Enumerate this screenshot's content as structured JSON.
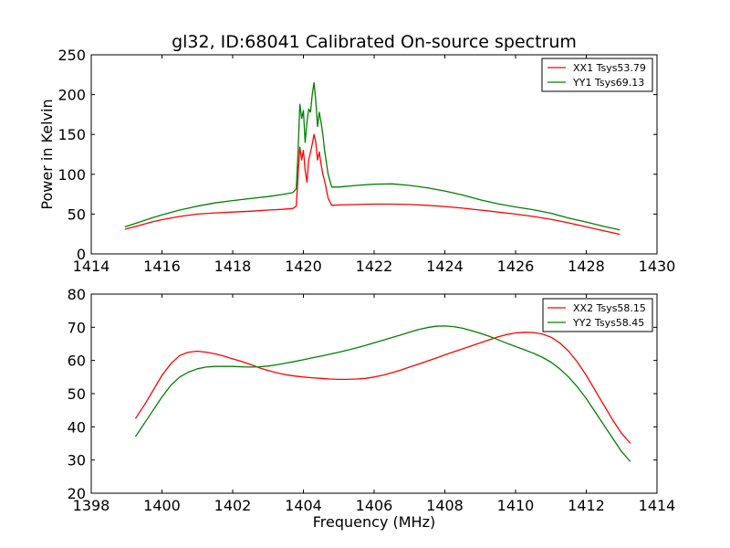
{
  "chart_data": [
    {
      "type": "line",
      "title": "gl32, ID:68041 Calibrated On-source spectrum",
      "xlabel": "",
      "ylabel": "Power in Kelvin",
      "xlim": [
        1414,
        1430
      ],
      "ylim": [
        0,
        250
      ],
      "xticks": [
        1414,
        1416,
        1418,
        1420,
        1422,
        1424,
        1426,
        1428,
        1430
      ],
      "yticks": [
        0,
        50,
        100,
        150,
        200,
        250
      ],
      "grid": false,
      "legend_position": "top-right",
      "series": [
        {
          "name": "XX1 Tsys53.79",
          "color": "#ff0000",
          "x": [
            1414.95,
            1415.3,
            1415.7,
            1416.0,
            1416.5,
            1417.0,
            1417.5,
            1418.0,
            1418.5,
            1419.0,
            1419.4,
            1419.7,
            1419.8,
            1419.85,
            1419.9,
            1419.95,
            1420.0,
            1420.05,
            1420.1,
            1420.15,
            1420.2,
            1420.25,
            1420.3,
            1420.35,
            1420.4,
            1420.45,
            1420.5,
            1420.55,
            1420.6,
            1420.7,
            1420.8,
            1421.0,
            1421.5,
            1422.0,
            1422.5,
            1423.0,
            1423.5,
            1424.0,
            1424.5,
            1425.0,
            1425.5,
            1426.0,
            1426.5,
            1427.0,
            1427.5,
            1428.0,
            1428.5,
            1428.95
          ],
          "y": [
            31,
            35,
            40,
            43,
            47,
            50,
            51.5,
            52.5,
            53.5,
            55,
            56,
            57,
            60,
            100,
            134,
            118,
            130,
            105,
            90,
            118,
            128,
            138,
            150,
            140,
            118,
            128,
            112,
            100,
            92,
            70,
            61,
            61.5,
            62,
            62.5,
            62.5,
            62,
            61,
            59.5,
            57.5,
            55,
            52.5,
            50,
            47,
            43.5,
            39,
            34,
            29,
            24.5
          ]
        },
        {
          "name": "YY1 Tsys69.13",
          "color": "#008000",
          "x": [
            1414.95,
            1415.3,
            1415.7,
            1416.0,
            1416.5,
            1417.0,
            1417.5,
            1418.0,
            1418.5,
            1419.0,
            1419.4,
            1419.7,
            1419.8,
            1419.85,
            1419.9,
            1419.95,
            1420.0,
            1420.05,
            1420.1,
            1420.15,
            1420.2,
            1420.25,
            1420.3,
            1420.35,
            1420.4,
            1420.45,
            1420.5,
            1420.55,
            1420.6,
            1420.7,
            1420.8,
            1421.0,
            1421.5,
            1422.0,
            1422.5,
            1423.0,
            1423.5,
            1424.0,
            1424.5,
            1425.0,
            1425.5,
            1426.0,
            1426.5,
            1427.0,
            1427.5,
            1428.0,
            1428.5,
            1428.95
          ],
          "y": [
            34,
            39,
            45,
            49,
            55,
            60,
            64,
            67,
            69.5,
            72,
            74.5,
            77,
            82,
            130,
            188,
            170,
            180,
            140,
            165,
            182,
            178,
            200,
            215,
            192,
            160,
            178,
            165,
            150,
            130,
            100,
            84,
            84,
            86,
            87.5,
            88,
            86,
            83,
            79,
            74,
            68,
            63,
            59,
            55.5,
            51,
            45,
            40,
            34.5,
            30
          ]
        }
      ]
    },
    {
      "type": "line",
      "title": "",
      "xlabel": "Frequency (MHz)",
      "ylabel": "",
      "xlim": [
        1398,
        1414
      ],
      "ylim": [
        20,
        80
      ],
      "xticks": [
        1398,
        1400,
        1402,
        1404,
        1406,
        1408,
        1410,
        1412,
        1414
      ],
      "yticks": [
        20,
        30,
        40,
        50,
        60,
        70,
        80
      ],
      "grid": false,
      "legend_position": "top-right",
      "series": [
        {
          "name": "XX2 Tsys58.15",
          "color": "#ff0000",
          "x": [
            1399.25,
            1399.5,
            1399.75,
            1400.0,
            1400.25,
            1400.5,
            1400.75,
            1401.0,
            1401.25,
            1401.5,
            1401.75,
            1402.0,
            1402.25,
            1402.5,
            1402.75,
            1403.0,
            1403.25,
            1403.5,
            1403.75,
            1404.0,
            1404.25,
            1404.5,
            1404.75,
            1405.0,
            1405.25,
            1405.5,
            1405.75,
            1406.0,
            1406.25,
            1406.5,
            1406.75,
            1407.0,
            1407.25,
            1407.5,
            1407.75,
            1408.0,
            1408.25,
            1408.5,
            1408.75,
            1409.0,
            1409.25,
            1409.5,
            1409.75,
            1410.0,
            1410.25,
            1410.5,
            1410.75,
            1411.0,
            1411.25,
            1411.5,
            1411.75,
            1412.0,
            1412.25,
            1412.5,
            1412.75,
            1413.0,
            1413.25
          ],
          "y": [
            42.5,
            46.5,
            51,
            55.5,
            59,
            61.5,
            62.5,
            62.8,
            62.5,
            62,
            61.3,
            60.5,
            59.7,
            58.8,
            57.8,
            57,
            56.3,
            55.7,
            55.3,
            55,
            54.8,
            54.6,
            54.4,
            54.3,
            54.3,
            54.4,
            54.6,
            55,
            55.6,
            56.3,
            57.1,
            58,
            58.9,
            59.8,
            60.7,
            61.7,
            62.6,
            63.5,
            64.4,
            65.3,
            66.2,
            67.1,
            67.8,
            68.3,
            68.5,
            68.4,
            68,
            67,
            65.3,
            62.8,
            59.5,
            55.5,
            51,
            46.5,
            42,
            38,
            35
          ]
        },
        {
          "name": "YY2 Tsys58.45",
          "color": "#008000",
          "x": [
            1399.25,
            1399.5,
            1399.75,
            1400.0,
            1400.25,
            1400.5,
            1400.75,
            1401.0,
            1401.25,
            1401.5,
            1401.75,
            1402.0,
            1402.25,
            1402.5,
            1402.75,
            1403.0,
            1403.25,
            1403.5,
            1403.75,
            1404.0,
            1404.25,
            1404.5,
            1404.75,
            1405.0,
            1405.25,
            1405.5,
            1405.75,
            1406.0,
            1406.25,
            1406.5,
            1406.75,
            1407.0,
            1407.25,
            1407.5,
            1407.75,
            1408.0,
            1408.25,
            1408.5,
            1408.75,
            1409.0,
            1409.25,
            1409.5,
            1409.75,
            1410.0,
            1410.25,
            1410.5,
            1410.75,
            1411.0,
            1411.25,
            1411.5,
            1411.75,
            1412.0,
            1412.25,
            1412.5,
            1412.75,
            1413.0,
            1413.25
          ],
          "y": [
            37,
            41,
            45,
            49,
            52.5,
            55,
            56.5,
            57.5,
            58,
            58.2,
            58.2,
            58.2,
            58.1,
            58,
            58.1,
            58.3,
            58.7,
            59.2,
            59.7,
            60.2,
            60.8,
            61.3,
            61.9,
            62.5,
            63.1,
            63.8,
            64.5,
            65.3,
            66.1,
            66.9,
            67.7,
            68.5,
            69.3,
            69.9,
            70.3,
            70.4,
            70.2,
            69.7,
            69,
            68.2,
            67.3,
            66.3,
            65.2,
            64.2,
            63.2,
            62.2,
            61,
            59.5,
            57.5,
            55,
            52,
            48.5,
            44.5,
            40.5,
            36.5,
            32.5,
            29.5
          ]
        }
      ]
    }
  ]
}
